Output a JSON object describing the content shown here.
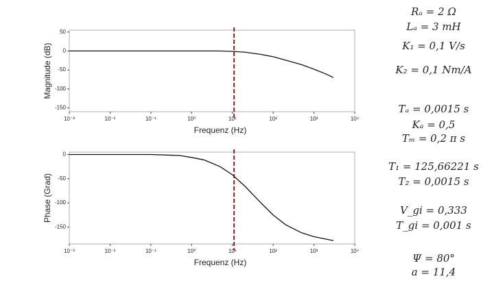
{
  "chart_data": [
    {
      "type": "line",
      "xscale": "log",
      "xlabel": "Frequenz (Hz)",
      "ylabel": "Magnitude (dB)",
      "x": [
        0.001,
        0.01,
        0.1,
        1,
        5,
        10,
        20,
        50,
        100,
        200,
        500,
        1000,
        2000,
        3000
      ],
      "values": [
        0,
        0,
        0,
        0,
        0,
        -1,
        -3,
        -9,
        -15,
        -24,
        -36,
        -48,
        -61,
        -70
      ],
      "color": "#111111",
      "xlim": [
        0.001,
        10000
      ],
      "xticks": [
        {
          "value": 0.001,
          "label": "10⁻³"
        },
        {
          "value": 0.01,
          "label": "10⁻²"
        },
        {
          "value": 0.1,
          "label": "10⁻¹"
        },
        {
          "value": 1,
          "label": "10⁰"
        },
        {
          "value": 10,
          "label": "10¹"
        },
        {
          "value": 100,
          "label": "10²"
        },
        {
          "value": 1000,
          "label": "10³"
        },
        {
          "value": 10000,
          "label": "10⁴"
        }
      ],
      "ylim": [
        -160,
        55
      ],
      "yticks": [
        -150,
        -100,
        -50,
        0,
        50
      ],
      "vline": 11,
      "vline_color": "#8b1a1a"
    },
    {
      "type": "line",
      "xscale": "log",
      "xlabel": "Frequenz (Hz)",
      "ylabel": "Phase (Grad)",
      "x": [
        0.001,
        0.1,
        0.5,
        1,
        2,
        5,
        10,
        20,
        50,
        100,
        200,
        500,
        1000,
        3000
      ],
      "values": [
        0,
        0,
        -2,
        -6,
        -11,
        -25,
        -42,
        -65,
        -100,
        -125,
        -145,
        -162,
        -170,
        -178
      ],
      "color": "#111111",
      "xlim": [
        0.001,
        10000
      ],
      "xticks": [
        {
          "value": 0.001,
          "label": "10⁻³"
        },
        {
          "value": 0.01,
          "label": "10⁻²"
        },
        {
          "value": 0.1,
          "label": "10⁻¹"
        },
        {
          "value": 1,
          "label": "10⁰"
        },
        {
          "value": 10,
          "label": "10¹"
        },
        {
          "value": 100,
          "label": "10²"
        },
        {
          "value": 1000,
          "label": "10³"
        },
        {
          "value": 10000,
          "label": "10⁴"
        }
      ],
      "ylim": [
        -185,
        5
      ],
      "yticks": [
        -150,
        -100,
        -50,
        0
      ],
      "vline": 11,
      "vline_color": "#8b1a1a"
    }
  ],
  "equations": [
    "Rₐ = 2 Ω",
    "Lₐ = 3 mH",
    "K₁ = 0,1 V/s",
    "K₂ = 0,1 Nm/A",
    "Tₐ = 0,0015 s",
    "Kₐ = 0,5",
    "Tₘ = 0,2 π s",
    "T₁ = 125,66221 s",
    "T₂ = 0,0015 s",
    "V_gi = 0,333",
    "T_gi = 0,001 s",
    "Ψ = 80°",
    "a = 11,4"
  ]
}
